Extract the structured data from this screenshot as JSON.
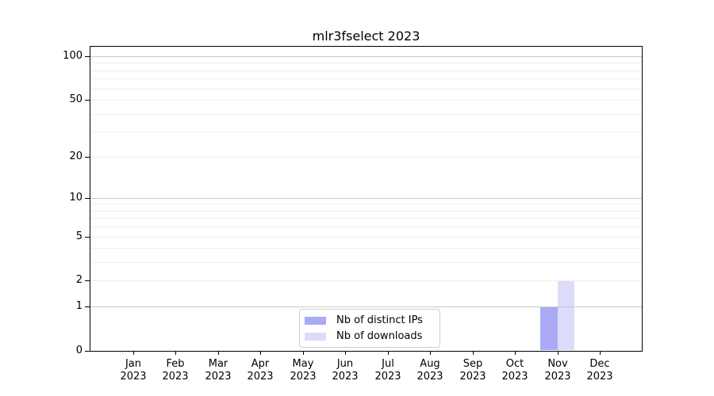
{
  "chart_data": {
    "type": "bar",
    "title": "mlr3fselect 2023",
    "x": [
      "Jan 2023",
      "Feb 2023",
      "Mar 2023",
      "Apr 2023",
      "May 2023",
      "Jun 2023",
      "Jul 2023",
      "Aug 2023",
      "Sep 2023",
      "Oct 2023",
      "Nov 2023",
      "Dec 2023"
    ],
    "series": [
      {
        "name": "Nb of distinct IPs",
        "color": "#a9a9f6",
        "values": [
          0,
          0,
          0,
          0,
          0,
          0,
          0,
          0,
          0,
          0,
          1,
          0
        ]
      },
      {
        "name": "Nb of downloads",
        "color": "#dcdcfa",
        "values": [
          0,
          0,
          0,
          0,
          0,
          0,
          0,
          0,
          0,
          0,
          2,
          0
        ]
      }
    ],
    "y_axis": {
      "scale": "log1p",
      "ylim": [
        0,
        116
      ],
      "ticks": [
        0,
        1,
        2,
        5,
        10,
        20,
        50,
        100
      ],
      "major_gridlines": [
        1,
        10,
        100
      ],
      "minor_gridlines": [
        2,
        3,
        4,
        5,
        6,
        7,
        8,
        9,
        20,
        30,
        40,
        50,
        60,
        70,
        80,
        90
      ]
    },
    "xlabel": "",
    "ylabel": "",
    "grid": true,
    "legend": {
      "position": "bottom-center",
      "entries": [
        "Nb of distinct IPs",
        "Nb of downloads"
      ]
    },
    "colors": {
      "grid_major": "#c9c9c9",
      "grid_minor": "#ededed",
      "axis": "#000000"
    }
  }
}
